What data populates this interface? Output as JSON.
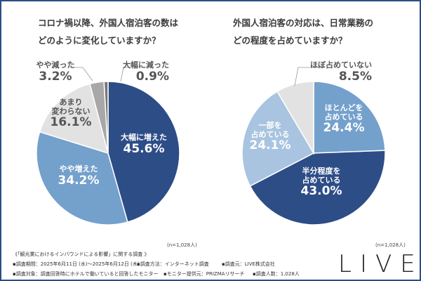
{
  "chart_data": [
    {
      "type": "pie",
      "title": "コロナ禍以降、外国人宿泊客の数はどのように変化していますか？",
      "title_lines": [
        "コロナ禍以降、外国人宿泊客の数は",
        "どのように変化していますか？"
      ],
      "slices": [
        {
          "label": "大幅に増えた",
          "value": 45.6,
          "display": "45.6%",
          "color": "#2d4d87"
        },
        {
          "label": "やや増えた",
          "value": 34.2,
          "display": "34.2%",
          "color": "#74a0cc"
        },
        {
          "label_lines": [
            "あまり",
            "変わらない"
          ],
          "label": "あまり変わらない",
          "value": 16.1,
          "display": "16.1%",
          "color": "#e2e2e2"
        },
        {
          "label": "やや減った",
          "value": 3.2,
          "display": "3.2%",
          "color": "#a8a8a8"
        },
        {
          "label": "大幅に減った",
          "value": 0.9,
          "display": "0.9%",
          "color": "#767676"
        }
      ],
      "n_note": "(n=1,028人)",
      "start": "top",
      "direction": "clockwise"
    },
    {
      "type": "pie",
      "title": "外国人宿泊客の対応は、日常業務のどの程度を占めていますか？",
      "title_lines": [
        "外国人宿泊客の対応は、日常業務の",
        "どの程度を占めていますか？"
      ],
      "slices": [
        {
          "label_lines": [
            "ほとんどを",
            "占めている"
          ],
          "label": "ほとんどを占めている",
          "value": 24.4,
          "display": "24.4%",
          "color": "#74a0cc"
        },
        {
          "label_lines": [
            "半分程度を",
            "占めている"
          ],
          "label": "半分程度を占めている",
          "value": 43.0,
          "display": "43.0%",
          "color": "#2d4d87"
        },
        {
          "label_lines": [
            "一部を",
            "占めている"
          ],
          "label": "一部を占めている",
          "value": 24.1,
          "display": "24.1%",
          "color": "#a9c4e0"
        },
        {
          "label": "ほぼ占めていない",
          "value": 8.5,
          "display": "8.5%",
          "color": "#e2e2e2"
        }
      ],
      "n_note": "(n=1,028人)",
      "start": "top",
      "direction": "clockwise"
    }
  ],
  "footer": {
    "survey_name": "《「観光業におけるインバウンドによる影響」に関する調査 》",
    "period": "▪調査期間：2025年6月11日 (水)～2025年6月12日 (木)",
    "method": "▪調査方法：インターネット調査",
    "source": "▪調査元：LIVE株式会社",
    "target": "▪調査対象：調査回答時にホテルで働いていると回答したモニター",
    "provider": "▪モニター提供元：PRIZMAリサーチ",
    "count": "▪調査人数：1,028人",
    "logo": "LIVE"
  },
  "colors": {
    "frame": "#2c4c86"
  }
}
